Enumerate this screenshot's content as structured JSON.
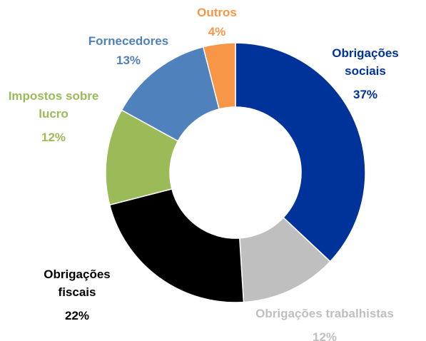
{
  "chart_data": {
    "type": "donut",
    "categories": [
      "Obrigações sociais",
      "Obrigações trabalhistas",
      "Obrigações fiscais",
      "Impostos sobre lucro",
      "Fornecedores",
      "Outros"
    ],
    "values": [
      37,
      12,
      22,
      12,
      13,
      4
    ],
    "value_labels": [
      "37%",
      "12%",
      "22%",
      "12%",
      "13%",
      "4%"
    ],
    "colors": [
      "#003399",
      "#bfbfbf",
      "#000000",
      "#9bbb59",
      "#4f81bd",
      "#f79646"
    ]
  }
}
